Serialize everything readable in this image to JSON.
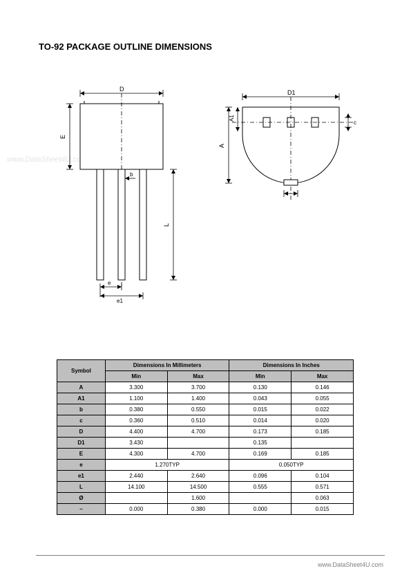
{
  "title": "TO-92 PACKAGE OUTLINE DIMENSIONS",
  "watermark": "www.DataSheet4U.com",
  "footer": "www.DataSheet4U.com",
  "diagram": {
    "labels": {
      "D": "D",
      "D1": "D1",
      "E": "E",
      "b": "b",
      "L": "L",
      "e": "e",
      "e1": "e1",
      "A": "A",
      "A1": "A1",
      "c": "c",
      "phi": "ø",
      "dash": "–"
    },
    "stroke": "#000000",
    "fill_body": "#ffffff",
    "dash_pattern": "4,3"
  },
  "table": {
    "headers": {
      "symbol": "Symbol",
      "mm": "Dimensions In Millimeters",
      "in": "Dimensions In Inches",
      "min": "Min",
      "max": "Max"
    },
    "rows": [
      {
        "sym": "A",
        "mm_min": "3.300",
        "mm_max": "3.700",
        "in_min": "0.130",
        "in_max": "0.146"
      },
      {
        "sym": "A1",
        "mm_min": "1.100",
        "mm_max": "1.400",
        "in_min": "0.043",
        "in_max": "0.055"
      },
      {
        "sym": "b",
        "mm_min": "0.380",
        "mm_max": "0.550",
        "in_min": "0.015",
        "in_max": "0.022"
      },
      {
        "sym": "c",
        "mm_min": "0.360",
        "mm_max": "0.510",
        "in_min": "0.014",
        "in_max": "0.020"
      },
      {
        "sym": "D",
        "mm_min": "4.400",
        "mm_max": "4.700",
        "in_min": "0.173",
        "in_max": "0.185"
      },
      {
        "sym": "D1",
        "mm_min": "3.430",
        "mm_max": "",
        "in_min": "0.135",
        "in_max": ""
      },
      {
        "sym": "E",
        "mm_min": "4.300",
        "mm_max": "4.700",
        "in_min": "0.169",
        "in_max": "0.185"
      },
      {
        "sym": "e",
        "mm_span": "1.270TYP",
        "in_span": "0.050TYP"
      },
      {
        "sym": "e1",
        "mm_min": "2.440",
        "mm_max": "2.640",
        "in_min": "0.096",
        "in_max": "0.104"
      },
      {
        "sym": "L",
        "mm_min": "14.100",
        "mm_max": "14.500",
        "in_min": "0.555",
        "in_max": "0.571"
      },
      {
        "sym": "Ø",
        "mm_min": "",
        "mm_max": "1.600",
        "in_min": "",
        "in_max": "0.063"
      },
      {
        "sym": "–",
        "mm_min": "0.000",
        "mm_max": "0.380",
        "in_min": "0.000",
        "in_max": "0.015"
      }
    ]
  }
}
